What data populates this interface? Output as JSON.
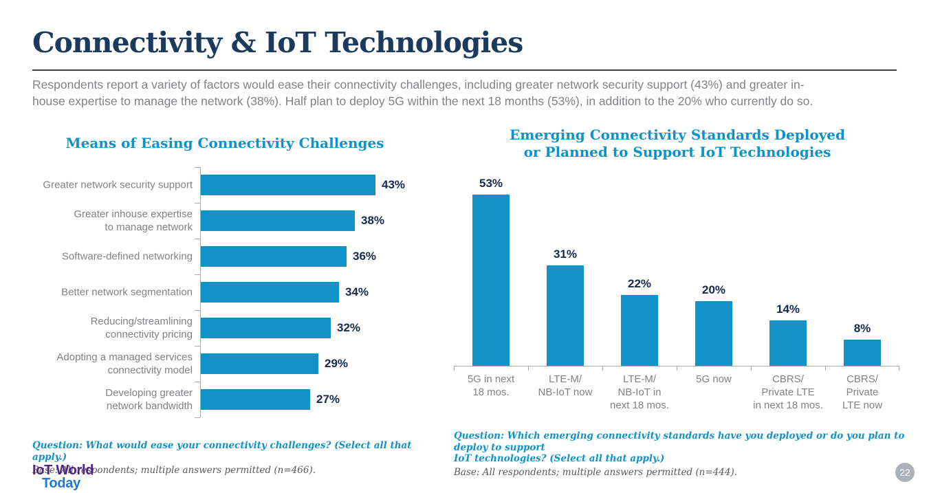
{
  "page": {
    "title": "Connectivity & IoT Technologies",
    "intro": "Respondents report a variety of factors would ease their connectivity challenges, including greater network security support (43%) and greater in-\nhouse expertise to manage the network (38%). Half plan to deploy 5G within the next 18 months (53%), in addition to the 20% who currently do so.",
    "page_number": "22"
  },
  "logo": {
    "line1": "IoT World",
    "line2": "Today"
  },
  "chart_data": [
    {
      "type": "bar",
      "orientation": "horizontal",
      "title": "Means of Easing Connectivity Challenges",
      "categories": [
        "Greater network security support",
        "Greater inhouse expertise\nto manage network",
        "Software-defined networking",
        "Better network segmentation",
        "Reducing/streamlining\nconnectivity pricing",
        "Adopting a managed services\nconnectivity model",
        "Developing greater\nnetwork bandwidth"
      ],
      "values": [
        43,
        38,
        36,
        34,
        32,
        29,
        27
      ],
      "value_labels": [
        "43%",
        "38%",
        "36%",
        "34%",
        "32%",
        "29%",
        "27%"
      ],
      "xlabel": "",
      "ylabel": "",
      "xlim": [
        0,
        50
      ],
      "grid": false,
      "legend": false,
      "question": "Question: What would ease your connectivity challenges? (Select all that apply.)",
      "base": "Base: All respondents; multiple answers permitted (n=466)."
    },
    {
      "type": "bar",
      "orientation": "vertical",
      "title": "Emerging Connectivity Standards Deployed\nor Planned to Support IoT Technologies",
      "categories": [
        "5G in next\n18 mos.",
        "LTE-M/\nNB-IoT now",
        "LTE-M/\nNB-IoT in\nnext 18 mos.",
        "5G now",
        "CBRS/\nPrivate LTE\nin next 18 mos.",
        "CBRS/\nPrivate\nLTE now"
      ],
      "values": [
        53,
        31,
        22,
        20,
        14,
        8
      ],
      "value_labels": [
        "53%",
        "31%",
        "22%",
        "20%",
        "14%",
        "8%"
      ],
      "xlabel": "",
      "ylabel": "",
      "ylim": [
        0,
        60
      ],
      "grid": false,
      "legend": false,
      "question": "Question: Which emerging connectivity standards have you deployed or do you plan to deploy to support\nIoT technologies? (Select all that apply.)",
      "base": "Base: All respondents; multiple answers permitted (n=444)."
    }
  ],
  "colors": {
    "heading": "#1C3A5E",
    "rule": "#3A3E4E",
    "body_text": "#808285",
    "bar": "#1193C8",
    "chart_title": "#0E93C8",
    "value_label": "#16294D",
    "axis": "#A6A9AE",
    "question": "#1193C8",
    "base_text": "#58595B",
    "logo_purple": "#4E2583",
    "logo_blue": "#1F78D1",
    "page_circle": "#ACB1BB"
  }
}
